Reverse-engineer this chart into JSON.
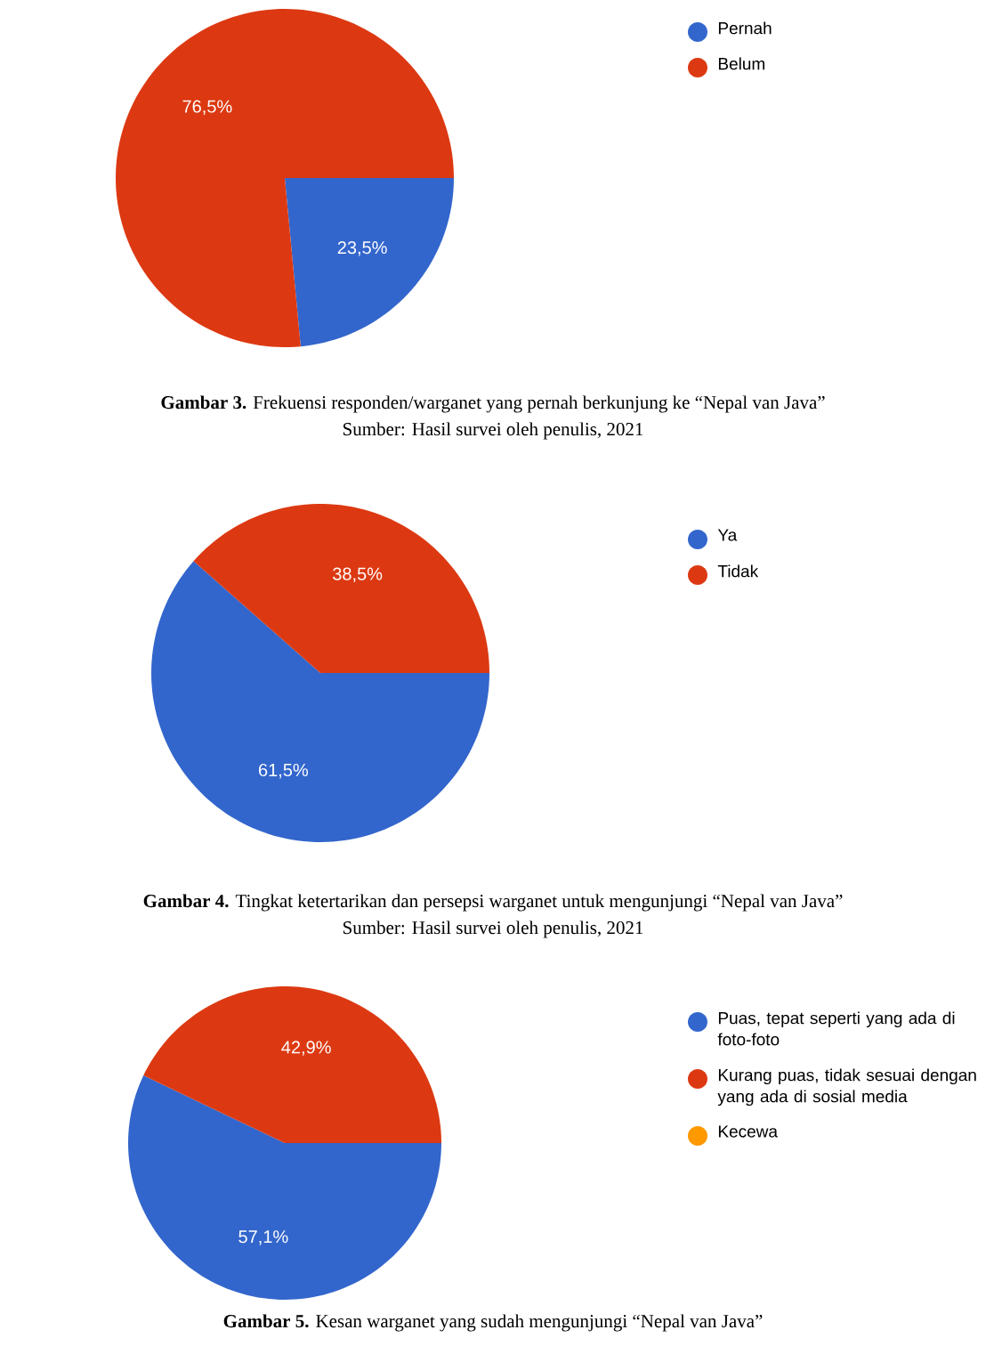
{
  "chart_data": [
    {
      "type": "pie",
      "categories": [
        "Pernah",
        "Belum"
      ],
      "values": [
        23.5,
        76.5
      ],
      "colors": [
        "#3366cc",
        "#dc3912"
      ],
      "value_labels": [
        "23,5%",
        "76,5%"
      ],
      "legend": "top right",
      "annotations": [
        "**Gambar 3.** Frekuensi responden/warganet yang pernah berkunjung ke “Nepal van Java”",
        "Sumber: Hasil survei oleh penulis, 2021"
      ]
    },
    {
      "type": "pie",
      "categories": [
        "Ya",
        "Tidak"
      ],
      "values": [
        61.5,
        38.5
      ],
      "colors": [
        "#3366cc",
        "#dc3912"
      ],
      "value_labels": [
        "61,5%",
        "38,5%"
      ],
      "legend": "top right",
      "annotations": [
        "**Gambar 4.** Tingkat ketertarikan dan persepsi warganet untuk mengunjungi “Nepal van Java”",
        "Sumber: Hasil survei oleh penulis, 2021"
      ]
    },
    {
      "type": "pie",
      "categories": [
        "Puas, tepat seperti yang ada di foto-foto",
        "Kurang puas, tidak sesuai dengan yang ada di sosial media",
        "Kecewa"
      ],
      "values": [
        57.1,
        42.9,
        0
      ],
      "colors": [
        "#3366cc",
        "#dc3912",
        "#ff9900"
      ],
      "value_labels": [
        "57,1%",
        "42,9%",
        null
      ],
      "legend": "top right",
      "annotations": [
        "**Gambar 5.** Kesan warganet yang sudah mengunjungi “Nepal van Java”"
      ]
    }
  ]
}
